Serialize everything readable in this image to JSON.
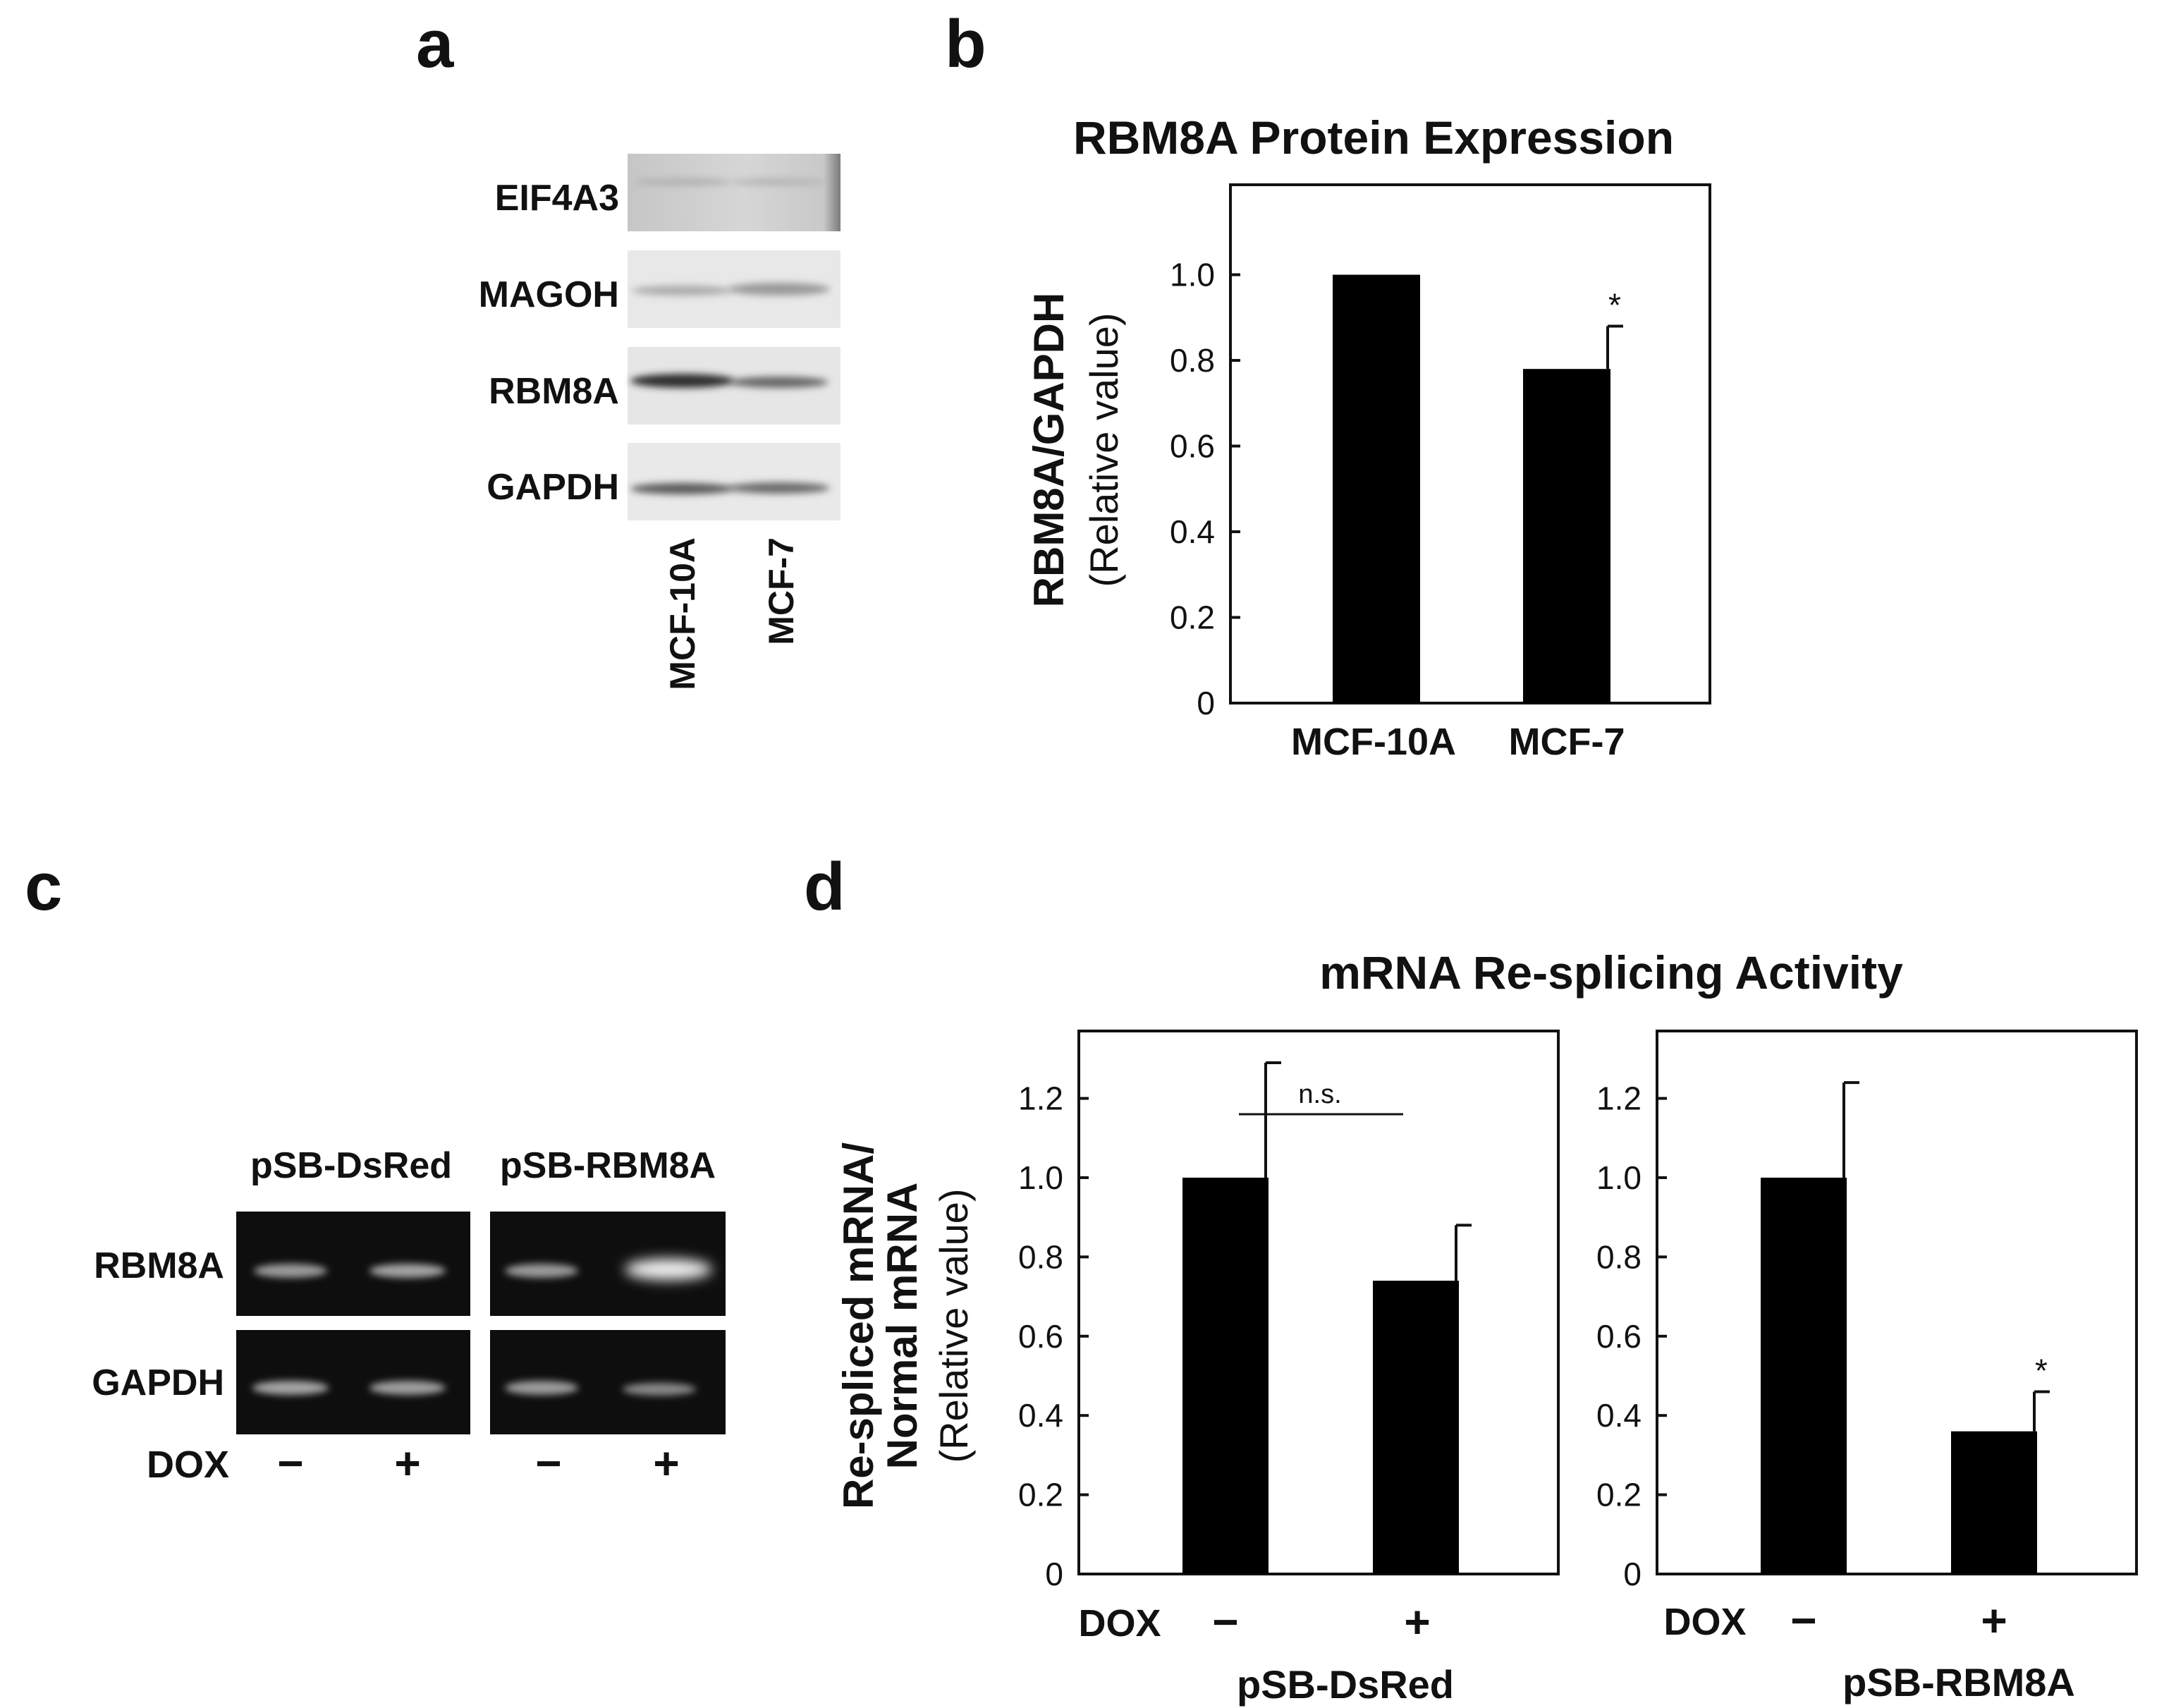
{
  "panels": {
    "a": "a",
    "b": "b",
    "c": "c",
    "d": "d"
  },
  "blot_a": {
    "rows": [
      "EIF4A3",
      "MAGOH",
      "RBM8A",
      "GAPDH"
    ],
    "lanes": [
      "MCF-10A",
      "MCF-7"
    ]
  },
  "gel_c": {
    "groups": [
      "pSB-DsRed",
      "pSB-RBM8A"
    ],
    "rows": [
      "RBM8A",
      "GAPDH"
    ],
    "dox_label": "DOX",
    "dox_signs": [
      "−",
      "+",
      "−",
      "+"
    ]
  },
  "chart_data": [
    {
      "type": "bar",
      "title": "RBM8A Protein Expression",
      "ylabel": [
        "RBM8A/GAPDH",
        "(Relative value)"
      ],
      "categories": [
        "MCF-10A",
        "MCF-7"
      ],
      "values": [
        1.0,
        0.78
      ],
      "error": [
        0.0,
        0.1
      ],
      "significance": [
        "",
        "*"
      ],
      "ylim": [
        0,
        1.0
      ],
      "yticks": [
        "0",
        "0.2",
        "0.4",
        "0.6",
        "0.8",
        "1.0"
      ],
      "grid": false
    },
    {
      "type": "bar",
      "title": "mRNA Re-splicing Activity",
      "ylabel": [
        "Re-spliced mRNA/",
        "Normal mRNA",
        "(Relative value)"
      ],
      "panels": [
        {
          "group": "pSB-DsRed",
          "xlabel_prefix": "DOX",
          "categories": [
            "−",
            "+"
          ],
          "values": [
            1.0,
            0.74
          ],
          "error": [
            0.29,
            0.14
          ],
          "significance_bracket": "n.s.",
          "significance": [
            "",
            ""
          ]
        },
        {
          "group": "pSB-RBM8A",
          "xlabel_prefix": "DOX",
          "categories": [
            "−",
            "+"
          ],
          "values": [
            1.0,
            0.36
          ],
          "error": [
            0.24,
            0.1
          ],
          "significance": [
            "",
            "*"
          ]
        }
      ],
      "ylim": [
        0,
        1.2
      ],
      "yticks": [
        "0",
        "0.2",
        "0.4",
        "0.6",
        "0.8",
        "1.0",
        "1.2"
      ],
      "grid": false
    }
  ]
}
